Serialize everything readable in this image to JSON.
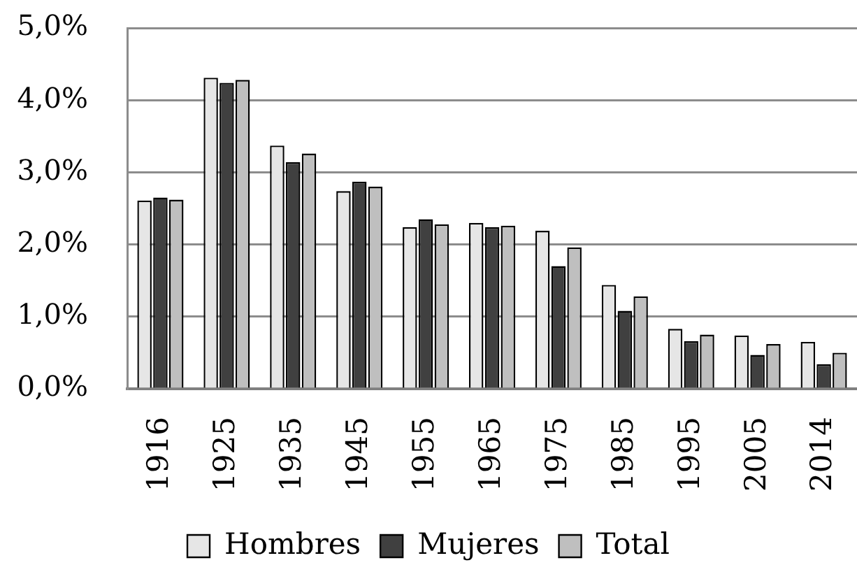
{
  "chart_data": {
    "type": "bar",
    "categories": [
      "1916",
      "1925",
      "1935",
      "1945",
      "1955",
      "1965",
      "1975",
      "1985",
      "1995",
      "2005",
      "2014"
    ],
    "series": [
      {
        "name": "Hombres",
        "color": "#e6e6e6",
        "values": [
          2.61,
          4.31,
          3.37,
          2.74,
          2.24,
          2.3,
          2.19,
          1.44,
          0.83,
          0.74,
          0.65
        ]
      },
      {
        "name": "Mujeres",
        "color": "#404040",
        "values": [
          2.65,
          4.24,
          3.14,
          2.87,
          2.35,
          2.24,
          1.7,
          1.08,
          0.66,
          0.47,
          0.34
        ]
      },
      {
        "name": "Total",
        "color": "#bfbfbf",
        "values": [
          2.62,
          4.28,
          3.26,
          2.8,
          2.28,
          2.26,
          1.96,
          1.28,
          0.75,
          0.62,
          0.5
        ]
      }
    ],
    "ylim": [
      0,
      5
    ],
    "yticks": [
      {
        "value": 0,
        "label": "0,0%"
      },
      {
        "value": 1,
        "label": "1,0%"
      },
      {
        "value": 2,
        "label": "2,0%"
      },
      {
        "value": 3,
        "label": "3,0%"
      },
      {
        "value": 4,
        "label": "4,0%"
      },
      {
        "value": 5,
        "label": "5,0%"
      }
    ],
    "grid": "y",
    "legend": "bottom"
  }
}
